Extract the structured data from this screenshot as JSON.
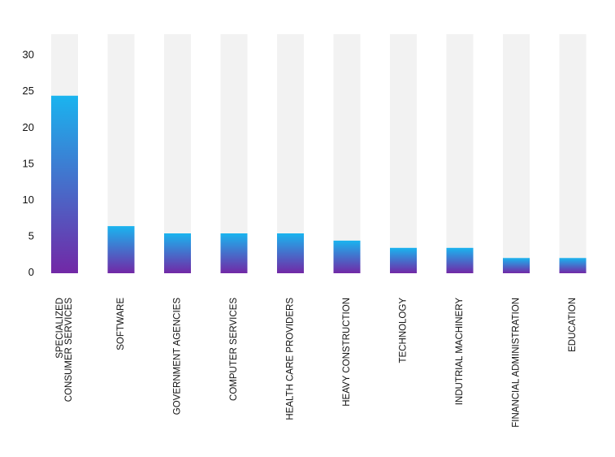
{
  "chart_data": {
    "type": "bar",
    "title": "",
    "xlabel": "",
    "ylabel": "",
    "ylim": [
      0,
      33
    ],
    "yticks": [
      0,
      5,
      10,
      15,
      20,
      25,
      30
    ],
    "grid": false,
    "categories": [
      [
        "SPECIALIZED",
        "CONSUMER SERVICES"
      ],
      [
        "SOFTWARE"
      ],
      [
        "GOVERNMENT AGENCIES"
      ],
      [
        "COMPUTER SERVICES"
      ],
      [
        "HEALTH CARE PROVIDERS"
      ],
      [
        "HEAVY CONSTRUCTION"
      ],
      [
        "TECHNOLOGY"
      ],
      [
        "INDUTRIAL MACHINERY"
      ],
      [
        "FINANCIAL ADMINISTRATION"
      ],
      [
        "EDUCATION"
      ]
    ],
    "values": [
      24.5,
      6.5,
      5.5,
      5.5,
      5.5,
      4.5,
      3.5,
      3.5,
      2.1,
      2.1
    ],
    "colors": {
      "track": "#f2f2f2",
      "bar_top": "#1ab4ef",
      "bar_bottom": "#7228a6"
    }
  }
}
